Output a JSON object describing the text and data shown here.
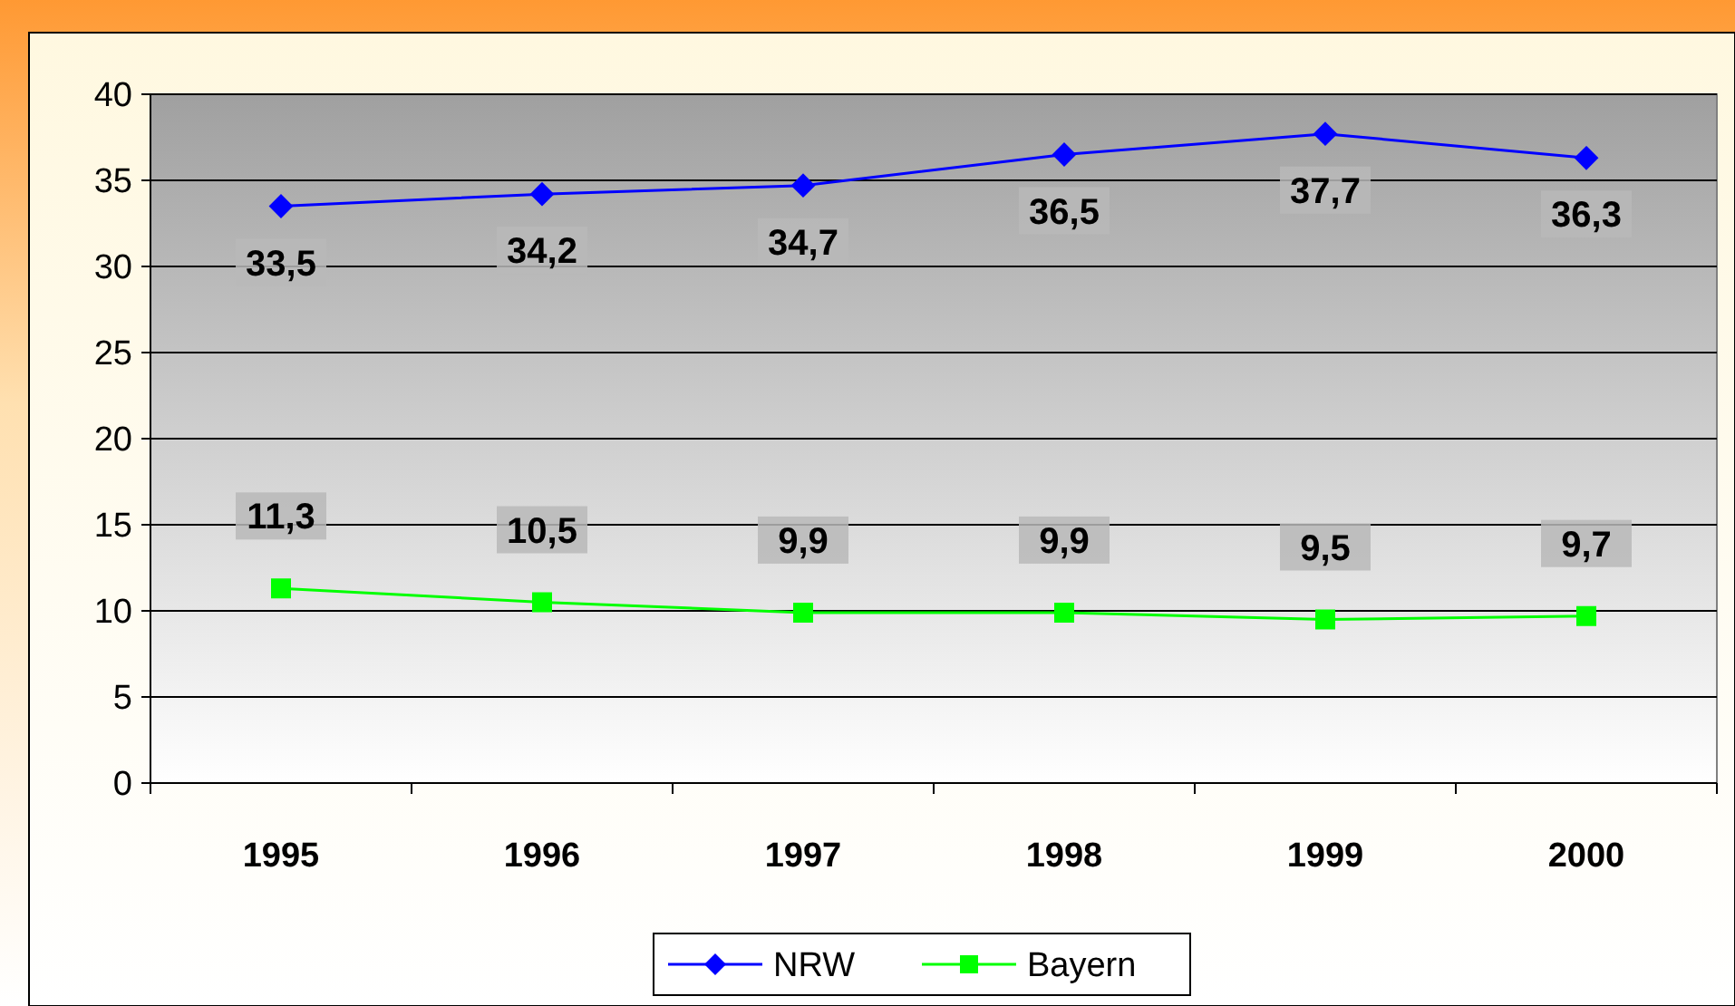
{
  "chart_data": {
    "type": "line",
    "categories": [
      "1995",
      "1996",
      "1997",
      "1998",
      "1999",
      "2000"
    ],
    "series": [
      {
        "name": "NRW",
        "color": "#0000ff",
        "marker": "diamond",
        "values": [
          33.5,
          34.2,
          34.7,
          36.5,
          37.7,
          36.3
        ],
        "value_labels": [
          "33,5",
          "34,2",
          "34,7",
          "36,5",
          "37,7",
          "36,3"
        ]
      },
      {
        "name": "Bayern",
        "color": "#00ff00",
        "marker": "square",
        "values": [
          11.3,
          10.5,
          9.9,
          9.9,
          9.5,
          9.7
        ],
        "value_labels": [
          "11,3",
          "10,5",
          "9,9",
          "9,9",
          "9,5",
          "9,7"
        ]
      }
    ],
    "ylim": [
      0,
      40
    ],
    "yticks": [
      0,
      5,
      10,
      15,
      20,
      25,
      30,
      35,
      40
    ],
    "grid": "y",
    "legend": "bottom",
    "data_labels": true
  }
}
